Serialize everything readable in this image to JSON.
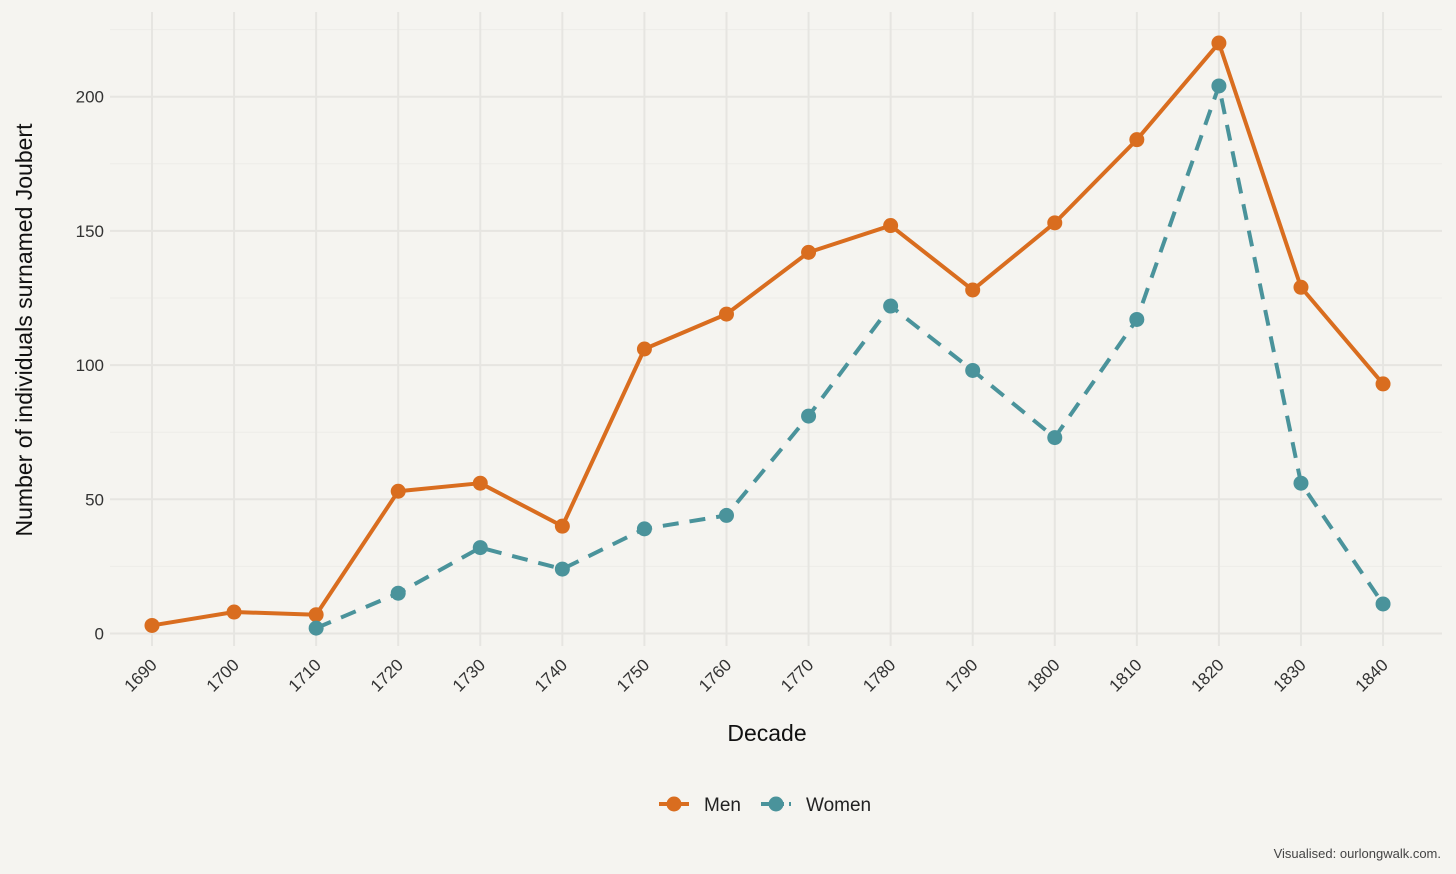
{
  "chart_data": {
    "type": "line",
    "x": [
      "1690",
      "1700",
      "1710",
      "1720",
      "1730",
      "1740",
      "1750",
      "1760",
      "1770",
      "1780",
      "1790",
      "1800",
      "1810",
      "1820",
      "1830",
      "1840"
    ],
    "series": [
      {
        "name": "Men",
        "color": "#d96d1f",
        "line_style": "solid",
        "marker": "circle",
        "values": [
          3,
          8,
          7,
          53,
          56,
          40,
          106,
          119,
          142,
          152,
          128,
          153,
          184,
          220,
          129,
          93
        ]
      },
      {
        "name": "Women",
        "color": "#4a939b",
        "line_style": "dashed",
        "marker": "circle",
        "values": [
          null,
          null,
          2,
          15,
          32,
          24,
          39,
          44,
          81,
          122,
          98,
          73,
          117,
          204,
          56,
          11
        ]
      }
    ],
    "xlabel": "Decade",
    "ylabel": "Number of individuals surnamed Joubert",
    "yticks": [
      0,
      50,
      100,
      150,
      200
    ],
    "ylim": [
      0,
      225
    ],
    "grid": true,
    "legend_position": "bottom",
    "caption": "Visualised: ourlongwalk.com."
  }
}
